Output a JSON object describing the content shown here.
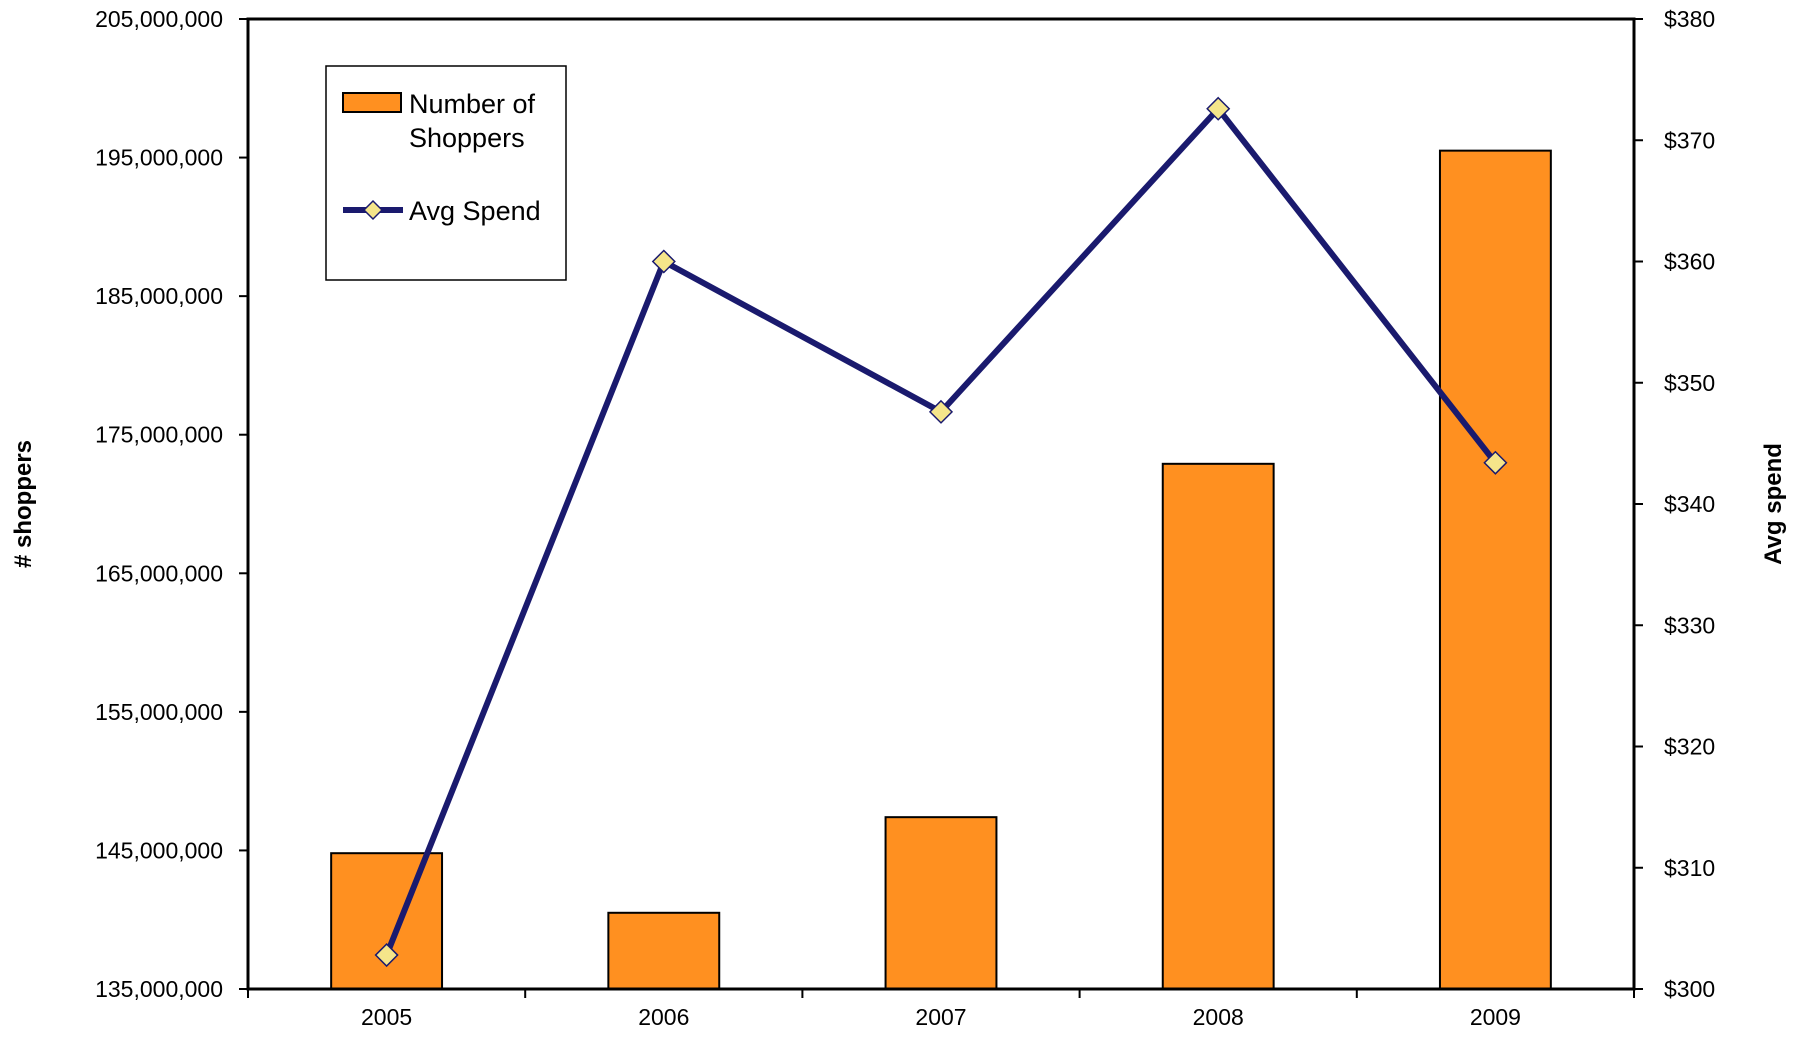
{
  "chart_data": {
    "type": "bar",
    "categories": [
      "2005",
      "2006",
      "2007",
      "2008",
      "2009"
    ],
    "series": [
      {
        "name": "Number of Shoppers",
        "type": "bar",
        "axis": "left",
        "color": "#FF9020",
        "values": [
          144800000,
          140500000,
          147400000,
          172900000,
          195500000
        ]
      },
      {
        "name": "Avg Spend",
        "type": "line",
        "axis": "right",
        "color": "#1A1A6E",
        "marker_color": "#F5E58A",
        "values": [
          302.8,
          360.0,
          347.6,
          372.6,
          343.4
        ]
      }
    ],
    "legend": {
      "position": "top-left",
      "items": [
        {
          "line1": "Number of",
          "line2": "Shoppers"
        },
        {
          "line1": "Avg Spend",
          "line2": ""
        }
      ]
    },
    "x_tick_labels": [
      "2005",
      "2006",
      "2007",
      "2008",
      "2009"
    ],
    "y_left": {
      "label": "# shoppers",
      "lim": [
        135000000,
        205000000
      ],
      "ticks": [
        135000000,
        145000000,
        155000000,
        165000000,
        175000000,
        185000000,
        195000000,
        205000000
      ],
      "tick_labels": [
        "135,000,000",
        "145,000,000",
        "155,000,000",
        "165,000,000",
        "175,000,000",
        "185,000,000",
        "195,000,000",
        "205,000,000"
      ]
    },
    "y_right": {
      "label": "Avg spend",
      "lim": [
        300,
        380
      ],
      "ticks": [
        300,
        310,
        320,
        330,
        340,
        350,
        360,
        370,
        380
      ],
      "tick_labels": [
        "$300",
        "$310",
        "$320",
        "$330",
        "$340",
        "$350",
        "$360",
        "$370",
        "$380"
      ]
    },
    "grid": false
  }
}
